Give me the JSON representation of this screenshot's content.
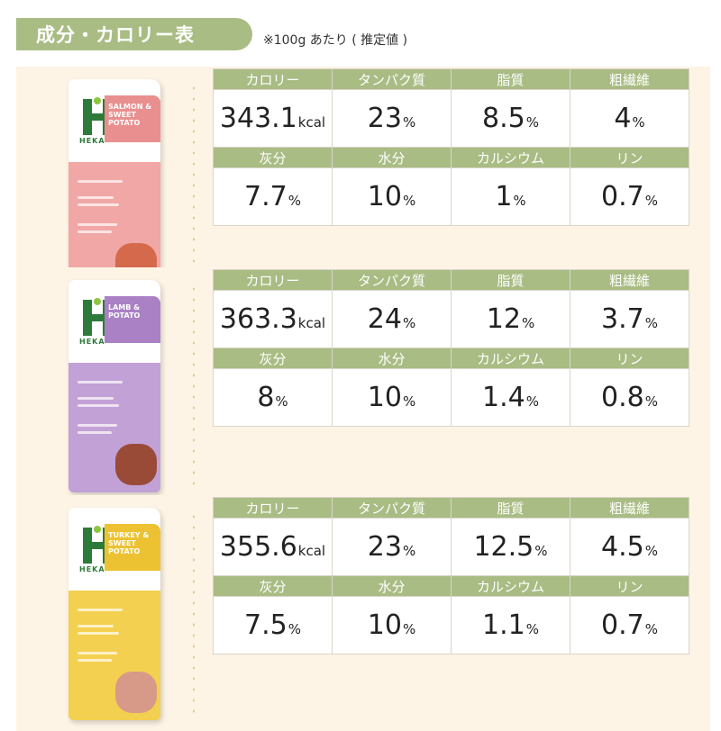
{
  "header": {
    "title": "成分・カロリー表",
    "note": "※100g あたり ( 推定値 )"
  },
  "labels": {
    "row1": [
      "カロリー",
      "タンパク質",
      "脂質",
      "粗繊維"
    ],
    "row2": [
      "灰分",
      "水分",
      "カルシウム",
      "リン"
    ]
  },
  "products": [
    {
      "brand": "HEKA",
      "name": "SALMON & SWEET POTATO",
      "colors": {
        "bag": "#f0a7a6",
        "label": "#e98f8f",
        "food": "#d5694c"
      },
      "row1": [
        {
          "value": "343.1",
          "unit": "kcal"
        },
        {
          "value": "23",
          "unit": "%"
        },
        {
          "value": "8.5",
          "unit": "%"
        },
        {
          "value": "4",
          "unit": "%"
        }
      ],
      "row2": [
        {
          "value": "7.7",
          "unit": "%"
        },
        {
          "value": "10",
          "unit": "%"
        },
        {
          "value": "1",
          "unit": "%"
        },
        {
          "value": "0.7",
          "unit": "%"
        }
      ]
    },
    {
      "brand": "HEKA",
      "name": "LAMB & POTATO",
      "colors": {
        "bag": "#c2a1d6",
        "label": "#a981c4",
        "food": "#9a4b38"
      },
      "row1": [
        {
          "value": "363.3",
          "unit": "kcal"
        },
        {
          "value": "24",
          "unit": "%"
        },
        {
          "value": "12",
          "unit": "%"
        },
        {
          "value": "3.7",
          "unit": "%"
        }
      ],
      "row2": [
        {
          "value": "8",
          "unit": "%"
        },
        {
          "value": "10",
          "unit": "%"
        },
        {
          "value": "1.4",
          "unit": "%"
        },
        {
          "value": "0.8",
          "unit": "%"
        }
      ]
    },
    {
      "brand": "HEKA",
      "name": "TURKEY & SWEET POTATO",
      "colors": {
        "bag": "#f3d04f",
        "label": "#ecc233",
        "food": "#d89a88"
      },
      "row1": [
        {
          "value": "355.6",
          "unit": "kcal"
        },
        {
          "value": "23",
          "unit": "%"
        },
        {
          "value": "12.5",
          "unit": "%"
        },
        {
          "value": "4.5",
          "unit": "%"
        }
      ],
      "row2": [
        {
          "value": "7.5",
          "unit": "%"
        },
        {
          "value": "10",
          "unit": "%"
        },
        {
          "value": "1.1",
          "unit": "%"
        },
        {
          "value": "0.7",
          "unit": "%"
        }
      ]
    }
  ],
  "accent": "#a9bc84",
  "section_bg": "#fdf4e5"
}
